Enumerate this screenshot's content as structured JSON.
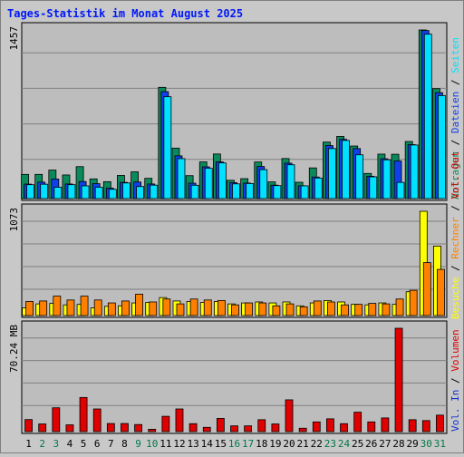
{
  "title": "Tages-Statistik im Monat August 2025",
  "colors": {
    "background": "#c8c8c8",
    "plot_bg": "#bdbdbd",
    "title": "#0018f8",
    "anfragen": "#0a8a5a",
    "dateien": "#1040e8",
    "seiten": "#00e0ff",
    "besuche": "#ffff00",
    "rechner": "#ff8000",
    "volumen": "#e00000",
    "vol_in": "#1030d0",
    "day_normal": "#000000",
    "day_weekend": "#00784a"
  },
  "chart_data": [
    {
      "type": "bar",
      "name": "hits",
      "ymax_label": "1457",
      "ylim": [
        0,
        1457
      ],
      "categories": [
        "1",
        "2",
        "3",
        "4",
        "5",
        "6",
        "7",
        "8",
        "9",
        "10",
        "11",
        "12",
        "13",
        "14",
        "15",
        "16",
        "17",
        "18",
        "19",
        "20",
        "21",
        "22",
        "23",
        "24",
        "25",
        "26",
        "27",
        "28",
        "29",
        "30",
        "31"
      ],
      "series": [
        {
          "name": "Anfragen",
          "values": [
            209,
            209,
            246,
            204,
            276,
            170,
            146,
            200,
            231,
            175,
            961,
            436,
            198,
            317,
            385,
            158,
            172,
            316,
            144,
            346,
            141,
            265,
            488,
            537,
            454,
            217,
            384,
            383,
            493,
            1457,
            950
          ]
        },
        {
          "name": "Dateien",
          "values": [
            125,
            142,
            169,
            126,
            147,
            129,
            90,
            140,
            143,
            126,
            924,
            369,
            133,
            274,
            317,
            138,
            134,
            277,
            116,
            306,
            111,
            186,
            458,
            512,
            432,
            193,
            344,
            325,
            466,
            1452,
            915
          ]
        },
        {
          "name": "Seiten",
          "values": [
            120,
            124,
            98,
            120,
            110,
            98,
            80,
            135,
            104,
            116,
            880,
            345,
            115,
            262,
            308,
            127,
            130,
            250,
            112,
            292,
            110,
            178,
            432,
            502,
            378,
            188,
            335,
            140,
            463,
            1420,
            890
          ]
        }
      ]
    },
    {
      "type": "bar",
      "name": "visits",
      "ymax_label": "1073",
      "ylim": [
        0,
        1073
      ],
      "categories": [
        "1",
        "2",
        "3",
        "4",
        "5",
        "6",
        "7",
        "8",
        "9",
        "10",
        "11",
        "12",
        "13",
        "14",
        "15",
        "16",
        "17",
        "18",
        "19",
        "20",
        "21",
        "22",
        "23",
        "24",
        "25",
        "26",
        "27",
        "28",
        "29",
        "30",
        "31"
      ],
      "series": [
        {
          "name": "Besuche",
          "values": [
            80,
            120,
            125,
            110,
            115,
            80,
            95,
            100,
            130,
            135,
            185,
            150,
            145,
            135,
            145,
            120,
            130,
            140,
            130,
            140,
            100,
            130,
            155,
            140,
            115,
            110,
            130,
            115,
            245,
            1073,
            715
          ]
        },
        {
          "name": "Rechner",
          "values": [
            145,
            150,
            200,
            160,
            200,
            160,
            130,
            150,
            220,
            140,
            170,
            120,
            170,
            160,
            155,
            110,
            130,
            130,
            100,
            120,
            90,
            150,
            140,
            110,
            115,
            125,
            120,
            170,
            260,
            545,
            475
          ]
        }
      ]
    },
    {
      "type": "bar",
      "name": "volume",
      "ymax_label": "70.24 MB",
      "ylim": [
        0,
        70.24
      ],
      "categories": [
        "1",
        "2",
        "3",
        "4",
        "5",
        "6",
        "7",
        "8",
        "9",
        "10",
        "11",
        "12",
        "13",
        "14",
        "15",
        "16",
        "17",
        "18",
        "19",
        "20",
        "21",
        "22",
        "23",
        "24",
        "25",
        "26",
        "27",
        "28",
        "29",
        "30",
        "31"
      ],
      "series": [
        {
          "name": "Volumen",
          "values": [
            8.2,
            5.2,
            16.2,
            4.6,
            23.2,
            15.4,
            5.5,
            5.5,
            4.8,
            1.6,
            10.4,
            15.4,
            5.4,
            2.9,
            9.0,
            3.9,
            3.9,
            8.1,
            5.2,
            21.6,
            2.3,
            6.6,
            8.7,
            5.4,
            13.2,
            6.6,
            9.3,
            70.24,
            8.1,
            7.5,
            11.2
          ]
        }
      ]
    }
  ],
  "legend_right": {
    "panel1": [
      "Anfragen",
      "Dateien",
      "Seiten"
    ],
    "panel2": [
      "Besuche",
      "Rechner",
      "Vol. Out"
    ],
    "panel3": [
      "Vol. In",
      "Volumen"
    ]
  },
  "weekend_days": [
    "2",
    "3",
    "9",
    "10",
    "16",
    "17",
    "23",
    "24",
    "30",
    "31"
  ]
}
